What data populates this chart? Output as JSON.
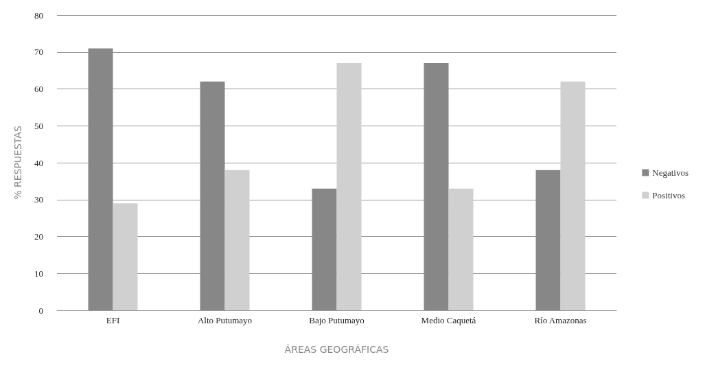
{
  "chart_data": {
    "type": "bar",
    "xlabel": "ÁREAS GEOGRÁFICAS",
    "ylabel": "% RESPUESTAS",
    "categories": [
      "EFI",
      "Alto Putumayo",
      "Bajo Putumayo",
      "Medio Caquetá",
      "Río Amazonas"
    ],
    "series": [
      {
        "name": "Negativos",
        "color": "#878787",
        "values": [
          71,
          62,
          33,
          67,
          38
        ]
      },
      {
        "name": "Positivos",
        "color": "#d0d0d0",
        "values": [
          29,
          38,
          67,
          33,
          62
        ]
      }
    ],
    "ylim": [
      0,
      80
    ],
    "yticks": [
      0,
      10,
      20,
      30,
      40,
      50,
      60,
      70,
      80
    ],
    "grid": "y",
    "legend": "right"
  }
}
